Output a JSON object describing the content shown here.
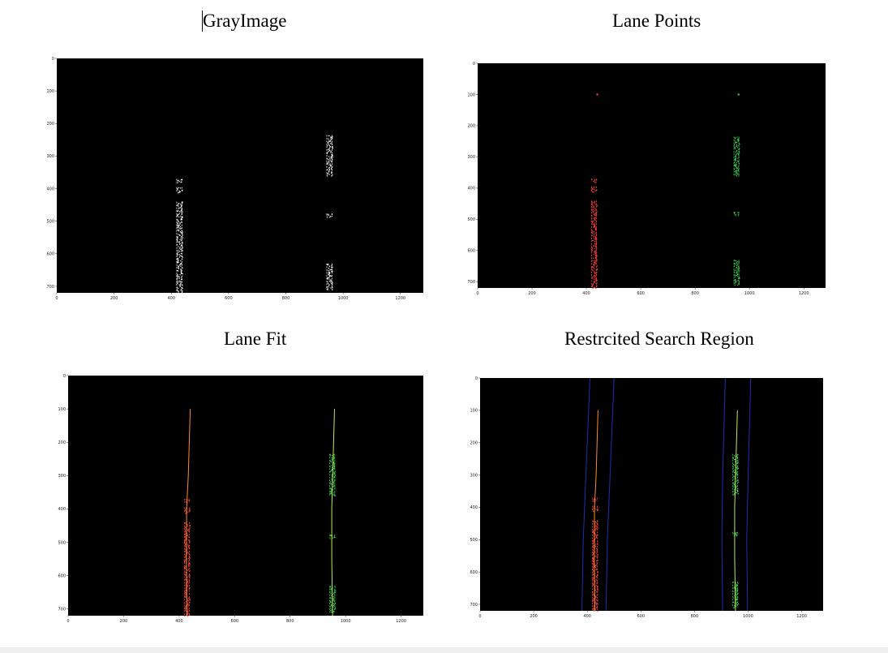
{
  "document": {
    "panels": [
      {
        "id": "gray",
        "title": "GrayImage",
        "chart_data": {
          "type": "scatter",
          "title": "GrayImage",
          "background": "#000000",
          "xlim": [
            0,
            1280
          ],
          "ylim": [
            720,
            0
          ],
          "xticks": [
            0,
            200,
            400,
            600,
            800,
            1000,
            1200
          ],
          "yticks": [
            0,
            100,
            200,
            300,
            400,
            500,
            600,
            700
          ],
          "left_lane_color": "#ffffff",
          "right_lane_color": "#ffffff",
          "left_lane_segments": [
            [
              370,
              380
            ],
            [
              395,
              410
            ],
            [
              440,
              720
            ]
          ],
          "right_lane_segments": [
            [
              235,
              360
            ],
            [
              476,
              486
            ],
            [
              630,
              710
            ]
          ],
          "left_lane_x": 428,
          "right_lane_x": 952
        }
      },
      {
        "id": "points",
        "title": "Lane Points",
        "chart_data": {
          "type": "scatter",
          "title": "Lane Points",
          "background": "#000000",
          "xlim": [
            0,
            1280
          ],
          "ylim": [
            720,
            0
          ],
          "xticks": [
            0,
            200,
            400,
            600,
            800,
            1000,
            1200
          ],
          "yticks": [
            0,
            100,
            200,
            300,
            400,
            500,
            600,
            700
          ],
          "left_lane_color": "#ff3b3b",
          "right_lane_color": "#39d353",
          "left_lane_segments": [
            [
              370,
              380
            ],
            [
              395,
              410
            ],
            [
              440,
              720
            ]
          ],
          "right_lane_segments": [
            [
              235,
              360
            ],
            [
              476,
              486
            ],
            [
              630,
              710
            ]
          ],
          "left_lane_x": 428,
          "right_lane_x": 952,
          "markers": [
            {
              "x": 440,
              "y": 100,
              "color": "#ff3b3b"
            },
            {
              "x": 960,
              "y": 100,
              "color": "#39d353"
            }
          ]
        }
      },
      {
        "id": "fit",
        "title": "Lane Fit",
        "chart_data": {
          "type": "line",
          "title": "Lane Fit",
          "background": "#000000",
          "xlim": [
            0,
            1280
          ],
          "ylim": [
            720,
            0
          ],
          "xticks": [
            0,
            200,
            400,
            600,
            800,
            1000,
            1200
          ],
          "yticks": [
            0,
            100,
            200,
            300,
            400,
            500,
            600,
            700
          ],
          "left_lane_color": "#ff3b3b",
          "right_lane_color": "#39d353",
          "left_lane_segments": [
            [
              370,
              380
            ],
            [
              395,
              410
            ],
            [
              440,
              720
            ]
          ],
          "right_lane_segments": [
            [
              235,
              360
            ],
            [
              476,
              486
            ],
            [
              630,
              710
            ]
          ],
          "left_lane_x": 428,
          "right_lane_x": 952,
          "series": [
            {
              "color": "#ff8c2a",
              "points": [
                [
                  440,
                  100
                ],
                [
                  433,
                  300
                ],
                [
                  427,
                  400
                ],
                [
                  426,
                  550
                ],
                [
                  428,
                  720
                ]
              ]
            },
            {
              "color": "#b5f04a",
              "points": [
                [
                  960,
                  100
                ],
                [
                  955,
                  250
                ],
                [
                  950,
                  400
                ],
                [
                  950,
                  550
                ],
                [
                  953,
                  720
                ]
              ]
            }
          ]
        }
      },
      {
        "id": "search",
        "title": "Restrcited Search Region",
        "chart_data": {
          "type": "line",
          "title": "Restrcited Search Region",
          "background": "#000000",
          "xlim": [
            0,
            1280
          ],
          "ylim": [
            720,
            0
          ],
          "xticks": [
            0,
            200,
            400,
            600,
            800,
            1000,
            1200
          ],
          "yticks": [
            0,
            100,
            200,
            300,
            400,
            500,
            600,
            700
          ],
          "left_lane_color": "#ff3b3b",
          "right_lane_color": "#39d353",
          "left_lane_segments": [
            [
              370,
              380
            ],
            [
              395,
              410
            ],
            [
              440,
              720
            ]
          ],
          "right_lane_segments": [
            [
              235,
              360
            ],
            [
              476,
              486
            ],
            [
              630,
              710
            ]
          ],
          "left_lane_x": 428,
          "right_lane_x": 952,
          "series": [
            {
              "color": "#ff8c2a",
              "points": [
                [
                  440,
                  100
                ],
                [
                  433,
                  300
                ],
                [
                  427,
                  400
                ],
                [
                  426,
                  550
                ],
                [
                  428,
                  720
                ]
              ]
            },
            {
              "color": "#b5f04a",
              "points": [
                [
                  960,
                  100
                ],
                [
                  955,
                  250
                ],
                [
                  950,
                  400
                ],
                [
                  950,
                  550
                ],
                [
                  953,
                  720
                ]
              ]
            }
          ],
          "search_bounds_color": "#1f2fb0",
          "search_bounds": [
            [
              [
                410,
                0
              ],
              [
                395,
                300
              ],
              [
                385,
                500
              ],
              [
                380,
                720
              ]
            ],
            [
              [
                500,
                0
              ],
              [
                485,
                300
              ],
              [
                475,
                500
              ],
              [
                470,
                720
              ]
            ],
            [
              [
                915,
                0
              ],
              [
                905,
                300
              ],
              [
                902,
                500
              ],
              [
                905,
                720
              ]
            ],
            [
              [
                1010,
                0
              ],
              [
                1000,
                300
              ],
              [
                995,
                500
              ],
              [
                998,
                720
              ]
            ]
          ]
        }
      }
    ]
  }
}
